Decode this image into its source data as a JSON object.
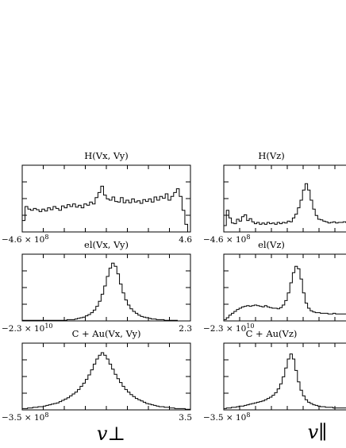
{
  "axis_labels": {
    "perp": "v⊥",
    "par": "v∥"
  },
  "chart_data": [
    {
      "type": "histogram",
      "title": "H(Vx, Vy)",
      "x_min_label": "−4.6 × 10^8",
      "x_max_label": "4.6",
      "xlim": [
        -4.6,
        4.6
      ],
      "ylim": [
        0,
        1.0
      ],
      "bins": 60,
      "values": [
        0.18,
        0.4,
        0.36,
        0.34,
        0.37,
        0.35,
        0.32,
        0.36,
        0.33,
        0.38,
        0.35,
        0.4,
        0.37,
        0.34,
        0.41,
        0.38,
        0.43,
        0.4,
        0.44,
        0.39,
        0.42,
        0.38,
        0.44,
        0.42,
        0.47,
        0.44,
        0.54,
        0.62,
        0.72,
        0.58,
        0.52,
        0.5,
        0.55,
        0.48,
        0.47,
        0.54,
        0.46,
        0.5,
        0.46,
        0.52,
        0.47,
        0.49,
        0.45,
        0.51,
        0.48,
        0.52,
        0.47,
        0.55,
        0.5,
        0.56,
        0.53,
        0.6,
        0.5,
        0.56,
        0.62,
        0.68,
        0.56,
        0.34,
        0.12,
        0.0
      ]
    },
    {
      "type": "histogram",
      "title": "H(Vz)",
      "x_min_label": "−4.6 × 10^8",
      "x_max_label": "",
      "xlim": [
        -4.6,
        4.6
      ],
      "ylim": [
        0,
        1.0
      ],
      "bins": 50,
      "values": [
        0.1,
        0.34,
        0.22,
        0.14,
        0.13,
        0.2,
        0.17,
        0.24,
        0.27,
        0.18,
        0.21,
        0.16,
        0.13,
        0.15,
        0.12,
        0.14,
        0.12,
        0.15,
        0.13,
        0.14,
        0.12,
        0.15,
        0.13,
        0.15,
        0.14,
        0.17,
        0.16,
        0.22,
        0.28,
        0.38,
        0.5,
        0.66,
        0.76,
        0.66,
        0.5,
        0.36,
        0.26,
        0.2,
        0.19,
        0.17,
        0.16,
        0.14,
        0.15,
        0.16,
        0.14,
        0.15,
        0.15,
        0.16,
        0.15,
        0.15
      ]
    },
    {
      "type": "histogram",
      "title": "el(Vx, Vy)",
      "x_min_label": "−2.3 × 10^10",
      "x_max_label": "2.3",
      "xlim": [
        -2.3,
        2.3
      ],
      "ylim": [
        0,
        1.0
      ],
      "bins": 64,
      "values": [
        0.01,
        0.01,
        0.01,
        0.01,
        0.01,
        0.01,
        0.01,
        0.01,
        0.01,
        0.01,
        0.01,
        0.01,
        0.01,
        0.01,
        0.01,
        0.01,
        0.01,
        0.02,
        0.02,
        0.02,
        0.03,
        0.04,
        0.05,
        0.06,
        0.08,
        0.1,
        0.13,
        0.17,
        0.23,
        0.31,
        0.42,
        0.55,
        0.7,
        0.83,
        0.91,
        0.86,
        0.74,
        0.58,
        0.44,
        0.33,
        0.25,
        0.19,
        0.15,
        0.12,
        0.09,
        0.07,
        0.06,
        0.05,
        0.04,
        0.03,
        0.03,
        0.02,
        0.02,
        0.02,
        0.01,
        0.01,
        0.01,
        0.01,
        0.01,
        0.0,
        0.0,
        0.0,
        0.0,
        0.0
      ]
    },
    {
      "type": "histogram",
      "title": "el(Vz)",
      "x_min_label": "−2.3 × 10^10",
      "x_max_label": "",
      "xlim": [
        -2.3,
        2.3
      ],
      "ylim": [
        0,
        1.0
      ],
      "bins": 50,
      "values": [
        0.02,
        0.05,
        0.09,
        0.12,
        0.15,
        0.18,
        0.2,
        0.22,
        0.23,
        0.24,
        0.23,
        0.24,
        0.25,
        0.24,
        0.23,
        0.22,
        0.24,
        0.22,
        0.21,
        0.2,
        0.2,
        0.19,
        0.21,
        0.25,
        0.32,
        0.44,
        0.6,
        0.76,
        0.86,
        0.82,
        0.66,
        0.44,
        0.28,
        0.2,
        0.16,
        0.14,
        0.13,
        0.13,
        0.12,
        0.12,
        0.12,
        0.11,
        0.11,
        0.12,
        0.11,
        0.11,
        0.11,
        0.11,
        0.11,
        0.11
      ]
    },
    {
      "type": "histogram",
      "title": "C + Au(Vx, Vy)",
      "x_min_label": "−3.5 × 10^8",
      "x_max_label": "3.5",
      "xlim": [
        -3.5,
        3.5
      ],
      "ylim": [
        0,
        1.0
      ],
      "bins": 64,
      "values": [
        0.02,
        0.02,
        0.03,
        0.03,
        0.04,
        0.04,
        0.05,
        0.05,
        0.06,
        0.07,
        0.08,
        0.09,
        0.1,
        0.11,
        0.13,
        0.15,
        0.17,
        0.19,
        0.22,
        0.25,
        0.28,
        0.32,
        0.37,
        0.42,
        0.48,
        0.55,
        0.63,
        0.72,
        0.8,
        0.86,
        0.9,
        0.86,
        0.8,
        0.72,
        0.64,
        0.56,
        0.49,
        0.43,
        0.37,
        0.32,
        0.28,
        0.24,
        0.21,
        0.18,
        0.16,
        0.14,
        0.12,
        0.1,
        0.09,
        0.08,
        0.07,
        0.06,
        0.05,
        0.05,
        0.04,
        0.04,
        0.03,
        0.03,
        0.02,
        0.02,
        0.02,
        0.02,
        0.01,
        0.01
      ]
    },
    {
      "type": "histogram",
      "title": "C + Au(Vz)",
      "x_min_label": "−3.5 × 10^8",
      "x_max_label": "",
      "xlim": [
        -3.5,
        3.5
      ],
      "ylim": [
        0,
        1.0
      ],
      "bins": 50,
      "values": [
        0.02,
        0.03,
        0.03,
        0.04,
        0.04,
        0.05,
        0.06,
        0.06,
        0.07,
        0.08,
        0.09,
        0.1,
        0.11,
        0.12,
        0.13,
        0.14,
        0.16,
        0.18,
        0.2,
        0.23,
        0.27,
        0.33,
        0.41,
        0.52,
        0.66,
        0.8,
        0.88,
        0.8,
        0.62,
        0.44,
        0.31,
        0.22,
        0.16,
        0.12,
        0.1,
        0.08,
        0.07,
        0.06,
        0.05,
        0.05,
        0.04,
        0.04,
        0.04,
        0.03,
        0.03,
        0.03,
        0.03,
        0.03,
        0.03,
        0.03
      ]
    }
  ]
}
